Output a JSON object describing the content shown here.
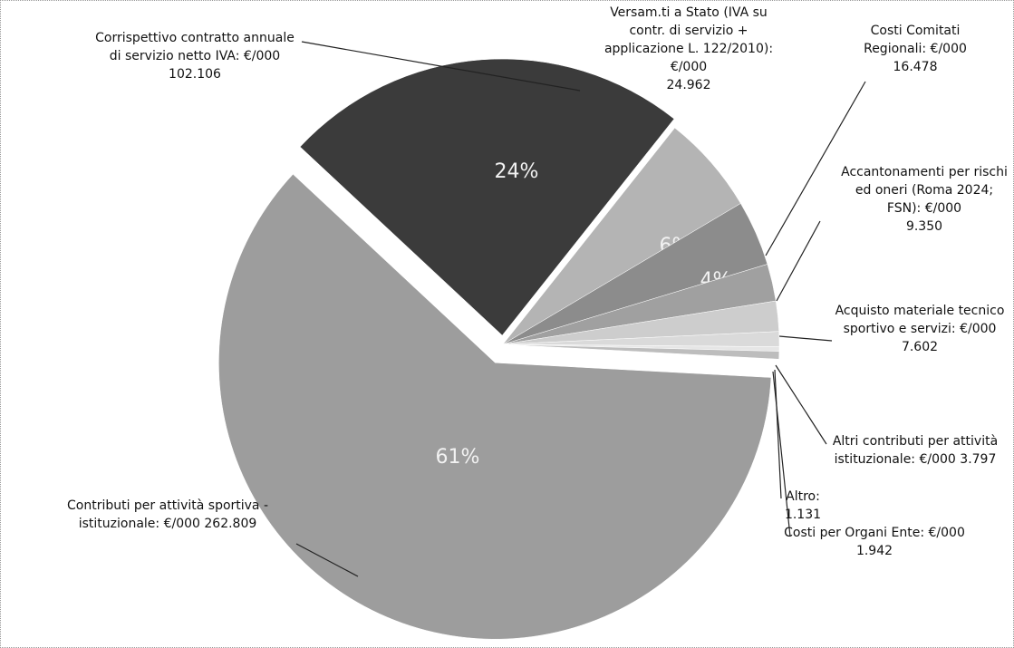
{
  "chart_data": {
    "type": "pie",
    "categories": [
      "Corrispettivo contratto annuale di servizio netto IVA: €/000",
      "Versam.ti a Stato (IVA su contr. di servizio + applicazione L. 122/2010): €/000",
      "Costi Comitati Regionali: €/000",
      "Accantonamenti per rischi ed oneri (Roma 2024; FSN): €/000",
      "Acquisto materiale tecnico sportivo e servizi: €/000",
      "Altri contributi per attività istituzionale: €/000",
      "Altro:",
      "Costi per Organi Ente: €/000",
      "Contributi per attività sportiva - istituzionale: €/000"
    ],
    "values": [
      102106,
      24962,
      16478,
      9350,
      7602,
      3797,
      1131,
      1942,
      262809
    ],
    "value_labels": [
      "102.106",
      "24.962",
      "16.478",
      "9.350",
      "7.602",
      "3.797",
      "1.131",
      "1.942",
      "262.809"
    ],
    "percent_labels": [
      "24%",
      "6%",
      "4%",
      null,
      null,
      null,
      null,
      null,
      "61%"
    ],
    "colors": [
      "#3b3b3b",
      "#b4b4b4",
      "#8c8c8c",
      "#a0a0a0",
      "#cdcdcd",
      "#dadada",
      "#e6e6e6",
      "#bdbdbd",
      "#9d9d9d"
    ]
  }
}
